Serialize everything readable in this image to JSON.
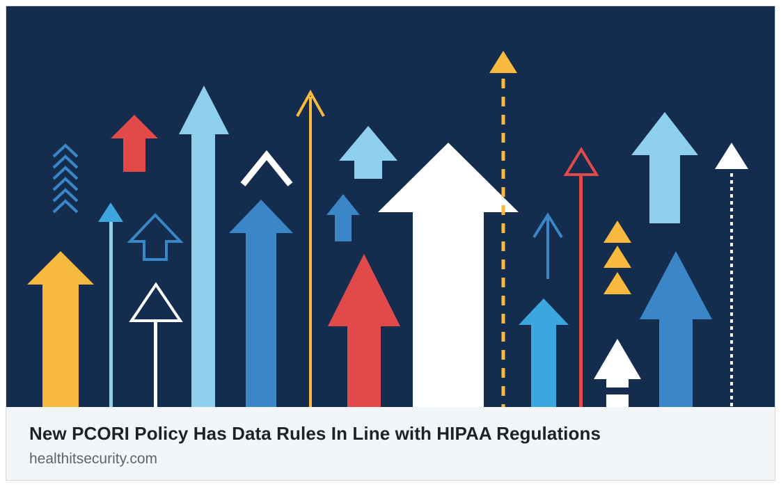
{
  "link_preview": {
    "image_icon": "rising-arrows-illustration",
    "title": "New PCORI Policy Has Data Rules In Line with HIPAA Regulations",
    "source": "healthitsecurity.com"
  },
  "colors": {
    "navy": "#142d4f",
    "yellow": "#f7b93e",
    "red": "#e24a4a",
    "light_blue": "#8fcfee",
    "mid_blue": "#3a86c6",
    "sky_blue": "#3ba7de",
    "white": "#ffffff"
  }
}
